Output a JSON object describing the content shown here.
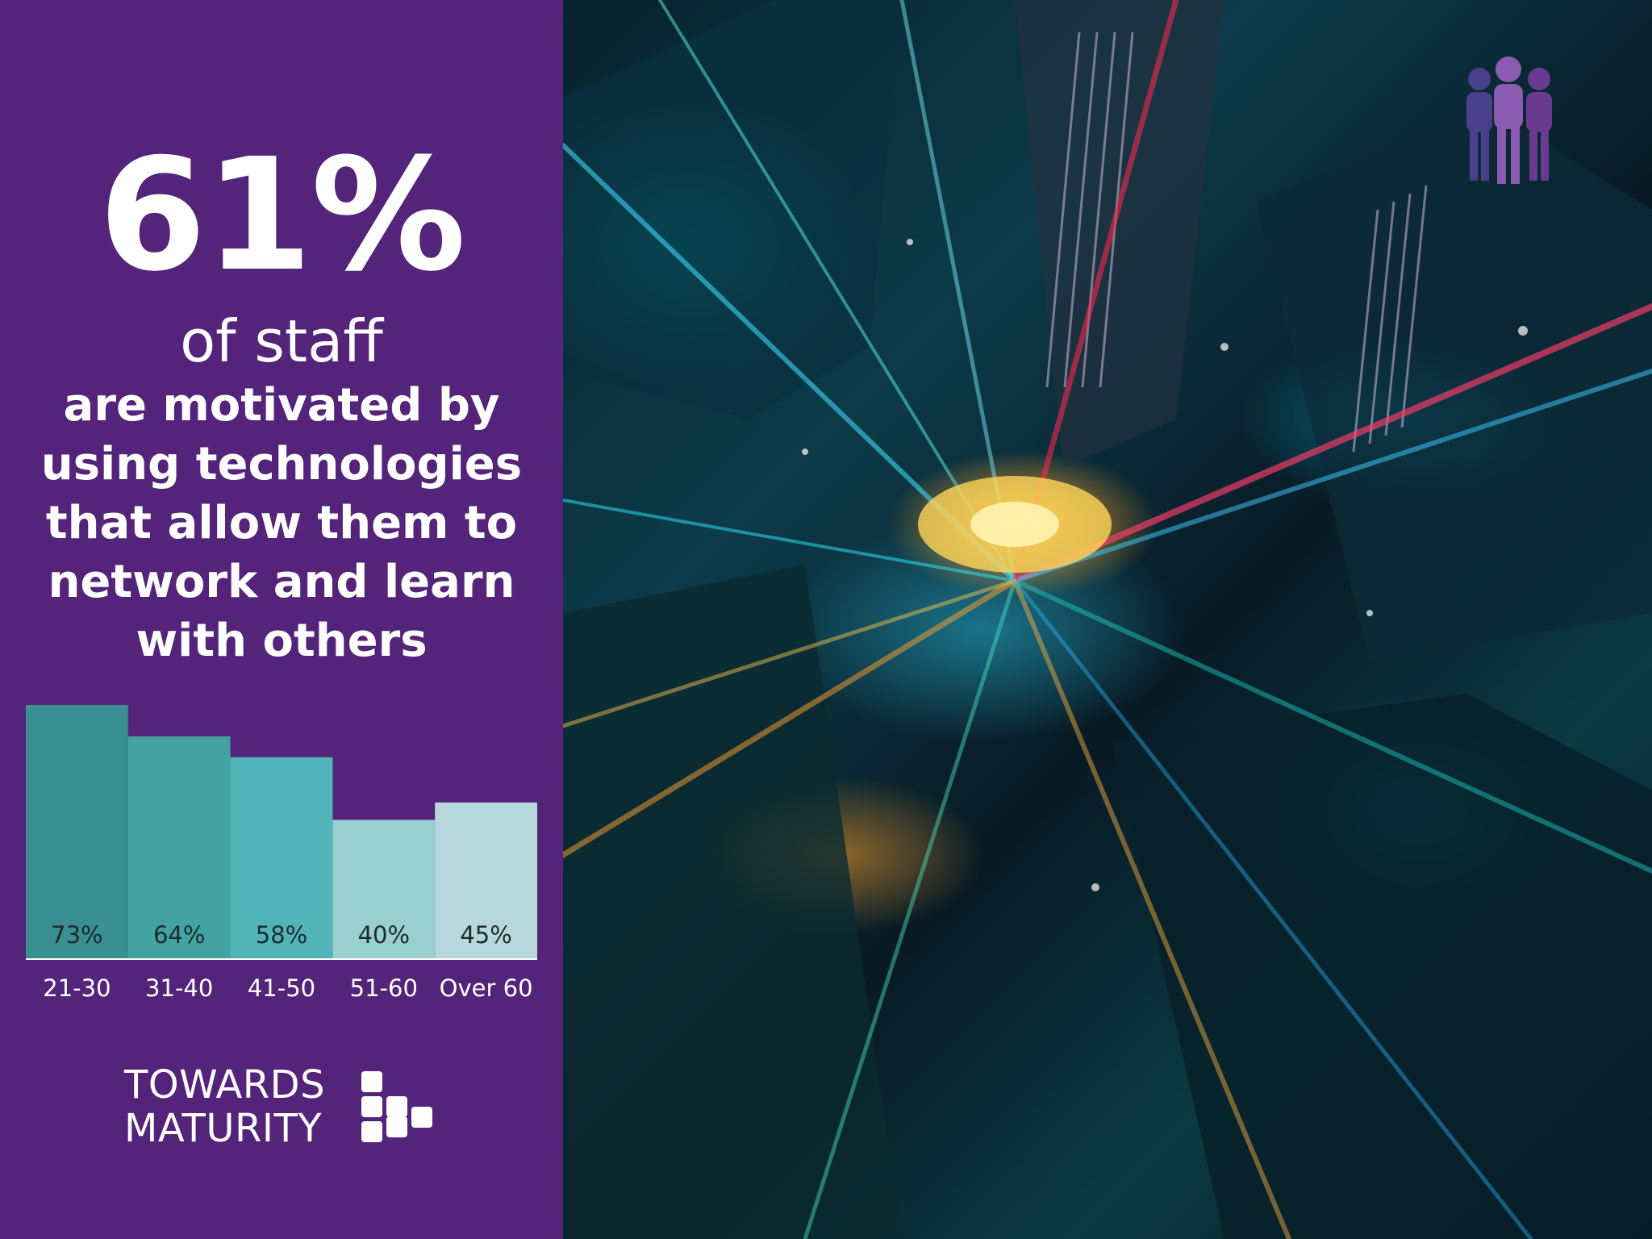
{
  "headline": {
    "percent": "61%",
    "subject": "of staff",
    "statement_lines": [
      "are motivated by",
      "using technologies",
      "that allow them to",
      "network and learn",
      "with others"
    ]
  },
  "chart_data": {
    "type": "bar",
    "categories": [
      "21-30",
      "31-40",
      "41-50",
      "51-60",
      "Over 60"
    ],
    "values": [
      73,
      64,
      58,
      40,
      45
    ],
    "value_labels": [
      "73%",
      "64%",
      "58%",
      "40%",
      "45%"
    ],
    "colors": [
      "#3a8f93",
      "#43a3a3",
      "#51b4b9",
      "#99cfcf",
      "#b6d8dc"
    ],
    "title": "",
    "xlabel": "",
    "ylabel": "",
    "ylim": [
      0,
      73
    ],
    "grid": false,
    "legend": "none"
  },
  "logo": {
    "line1": "TOWARDS",
    "line2": "MATURITY"
  },
  "icons": {
    "people": "people-group-icon",
    "logo_mark": "logo-blocks-icon"
  },
  "colors": {
    "panel": "#53247a",
    "text": "#ffffff",
    "people_icon": [
      "#4a3f8a",
      "#8a5bb0",
      "#6a3a90"
    ]
  },
  "photo": {
    "description_icon": "city-night-photo"
  }
}
